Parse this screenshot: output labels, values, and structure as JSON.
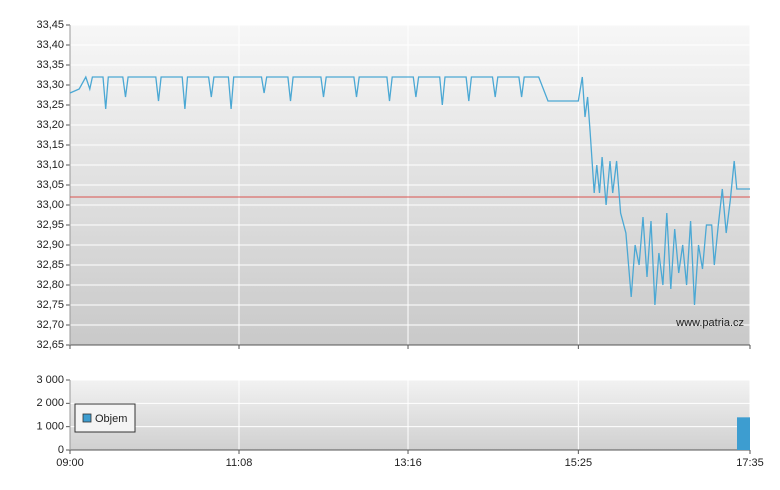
{
  "chart_data": [
    {
      "type": "line",
      "watermark": "www.patria.cz",
      "ylim": [
        32.65,
        33.45
      ],
      "yticks": [
        {
          "value": 32.65,
          "label": "32,65"
        },
        {
          "value": 32.7,
          "label": "32,70"
        },
        {
          "value": 32.75,
          "label": "32,75"
        },
        {
          "value": 32.8,
          "label": "32,80"
        },
        {
          "value": 32.85,
          "label": "32,85"
        },
        {
          "value": 32.9,
          "label": "32,90"
        },
        {
          "value": 32.95,
          "label": "32,95"
        },
        {
          "value": 33.0,
          "label": "33,00"
        },
        {
          "value": 33.05,
          "label": "33,05"
        },
        {
          "value": 33.1,
          "label": "33,10"
        },
        {
          "value": 33.15,
          "label": "33,15"
        },
        {
          "value": 33.2,
          "label": "33,20"
        },
        {
          "value": 33.25,
          "label": "33,25"
        },
        {
          "value": 33.3,
          "label": "33,30"
        },
        {
          "value": 33.35,
          "label": "33,35"
        },
        {
          "value": 33.4,
          "label": "33,40"
        },
        {
          "value": 33.45,
          "label": "33,45"
        }
      ],
      "xlim": [
        "09:00",
        "17:35"
      ],
      "reference_value": 33.02,
      "reference_color": "#d9534f",
      "grid": true,
      "series": [
        {
          "color": "#4ba8d4",
          "x": [
            "09:00",
            "09:07",
            "09:12",
            "09:15",
            "09:17",
            "09:25",
            "09:27",
            "09:29",
            "09:40",
            "09:42",
            "09:44",
            "10:05",
            "10:07",
            "10:09",
            "10:25",
            "10:27",
            "10:29",
            "10:45",
            "10:47",
            "10:49",
            "11:00",
            "11:02",
            "11:04",
            "11:25",
            "11:27",
            "11:29",
            "11:45",
            "11:47",
            "11:49",
            "12:10",
            "12:12",
            "12:14",
            "12:35",
            "12:37",
            "12:39",
            "13:00",
            "13:02",
            "13:04",
            "13:20",
            "13:22",
            "13:24",
            "13:40",
            "13:42",
            "13:44",
            "14:00",
            "14:02",
            "14:04",
            "14:20",
            "14:22",
            "14:24",
            "14:40",
            "14:42",
            "14:44",
            "14:55",
            "15:02",
            "15:25",
            "15:28",
            "15:30",
            "15:32",
            "15:34",
            "15:37",
            "15:39",
            "15:41",
            "15:43",
            "15:46",
            "15:49",
            "15:51",
            "15:54",
            "15:57",
            "16:01",
            "16:05",
            "16:08",
            "16:11",
            "16:14",
            "16:17",
            "16:20",
            "16:23",
            "16:26",
            "16:29",
            "16:32",
            "16:35",
            "16:38",
            "16:41",
            "16:44",
            "16:47",
            "16:50",
            "16:53",
            "16:56",
            "16:59",
            "17:02",
            "17:06",
            "17:08",
            "17:11",
            "17:14",
            "17:17",
            "17:20",
            "17:23",
            "17:25",
            "17:35"
          ],
          "values": [
            33.28,
            33.29,
            33.32,
            33.29,
            33.32,
            33.32,
            33.24,
            33.32,
            33.32,
            33.27,
            33.32,
            33.32,
            33.26,
            33.32,
            33.32,
            33.24,
            33.32,
            33.32,
            33.27,
            33.32,
            33.32,
            33.24,
            33.32,
            33.32,
            33.28,
            33.32,
            33.32,
            33.26,
            33.32,
            33.32,
            33.27,
            33.32,
            33.32,
            33.27,
            33.32,
            33.32,
            33.26,
            33.32,
            33.32,
            33.27,
            33.32,
            33.32,
            33.25,
            33.32,
            33.32,
            33.26,
            33.32,
            33.32,
            33.27,
            33.32,
            33.32,
            33.27,
            33.32,
            33.32,
            33.26,
            33.26,
            33.32,
            33.22,
            33.27,
            33.18,
            33.03,
            33.1,
            33.03,
            33.12,
            33.0,
            33.11,
            33.03,
            33.11,
            32.98,
            32.93,
            32.77,
            32.9,
            32.85,
            32.97,
            32.82,
            32.96,
            32.75,
            32.88,
            32.8,
            32.98,
            32.79,
            32.94,
            32.83,
            32.9,
            32.8,
            32.96,
            32.75,
            32.9,
            32.84,
            32.95,
            32.95,
            32.85,
            32.95,
            33.04,
            32.93,
            33.01,
            33.11,
            33.04,
            33.04
          ]
        }
      ]
    },
    {
      "type": "bar",
      "ylim": [
        0,
        3000
      ],
      "yticks": [
        0,
        {
          "value": 1000,
          "label": "1 000"
        },
        {
          "value": 2000,
          "label": "2 000"
        },
        {
          "value": 3000,
          "label": "3 000"
        }
      ],
      "xlim": [
        "09:00",
        "17:35"
      ],
      "xticks": [
        "09:00",
        "11:08",
        "13:16",
        "15:25",
        "17:35"
      ],
      "grid": true,
      "series": [
        {
          "name": "Objem",
          "color": "#3d9dd0",
          "x": [
            "17:35"
          ],
          "values": [
            1400
          ]
        }
      ]
    }
  ]
}
